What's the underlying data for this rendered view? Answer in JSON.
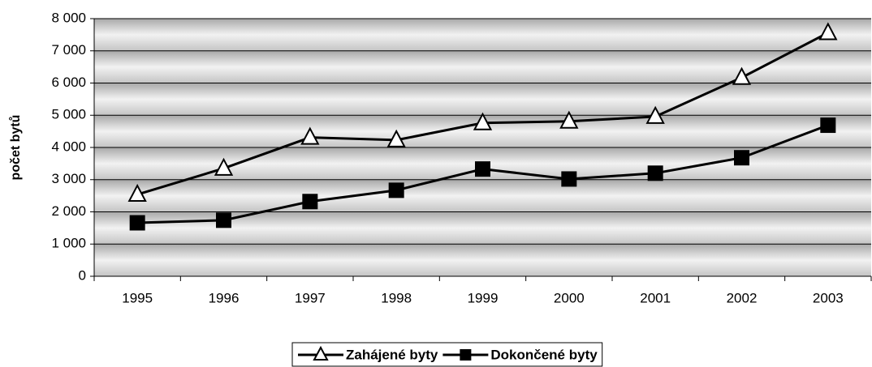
{
  "chart_data": {
    "type": "line",
    "y_label": "počet bytů",
    "categories": [
      "1995",
      "1996",
      "1997",
      "1998",
      "1999",
      "2000",
      "2001",
      "2002",
      "2003"
    ],
    "series": [
      {
        "name": "Zahájené byty",
        "color": "#000000",
        "marker": "triangle",
        "values": [
          2540,
          3350,
          4310,
          4230,
          4760,
          4810,
          4960,
          6170,
          7560
        ]
      },
      {
        "name": "Dokončené byty",
        "color": "#000000",
        "marker": "square",
        "values": [
          1660,
          1740,
          2320,
          2670,
          3330,
          3020,
          3200,
          3680,
          4690
        ]
      }
    ],
    "ylim": [
      0,
      8000
    ],
    "yticks": [
      0,
      {
        "value": 1000,
        "label": "1 000"
      },
      {
        "value": 2000,
        "label": "2 000"
      },
      {
        "value": 3000,
        "label": "3 000"
      },
      {
        "value": 4000,
        "label": "4 000"
      },
      {
        "value": 5000,
        "label": "5 000"
      },
      {
        "value": 6000,
        "label": "6 000"
      },
      {
        "value": 7000,
        "label": "7 000"
      },
      {
        "value": 8000,
        "label": "8 000"
      }
    ],
    "grid": true,
    "legend": "bottom"
  }
}
